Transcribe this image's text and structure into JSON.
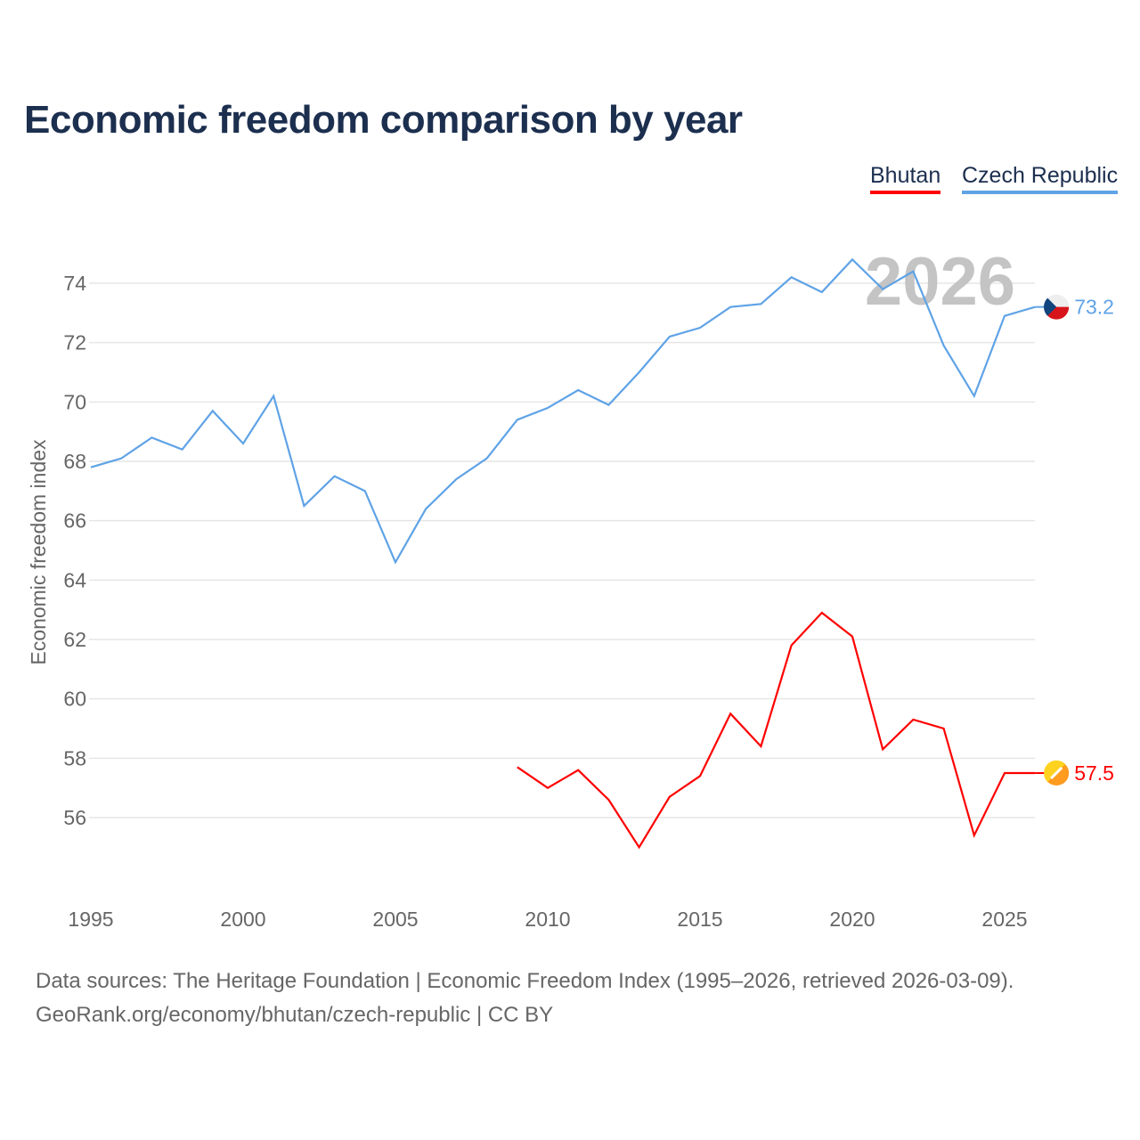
{
  "title": "Economic freedom comparison by year",
  "legend": [
    {
      "label": "Bhutan",
      "color": "#ff0000"
    },
    {
      "label": "Czech Republic",
      "color": "#5fa3e6"
    }
  ],
  "footer": {
    "line1": "Data sources: The Heritage Foundation | Economic Freedom Index (1995–2026, retrieved 2026-03-09).",
    "line2": "GeoRank.org/economy/bhutan/czech-republic | CC BY"
  },
  "chart_data": {
    "type": "line",
    "title": "Economic freedom comparison by year",
    "ylabel": "Economic freedom index",
    "xlabel": "",
    "year_watermark": "2026",
    "xlim": [
      1995,
      2026
    ],
    "ylim": [
      53.5,
      75
    ],
    "x_ticks": [
      "1995",
      "2000",
      "2005",
      "2010",
      "2015",
      "2020",
      "2025"
    ],
    "y_ticks": [
      "56",
      "58",
      "60",
      "62",
      "64",
      "66",
      "68",
      "70",
      "72",
      "74"
    ],
    "grid": true,
    "legend_position": "top-right",
    "series": [
      {
        "name": "Czech Republic",
        "color": "#5fa3e6",
        "end_label": "73.2",
        "x": [
          1995,
          1996,
          1997,
          1998,
          1999,
          2000,
          2001,
          2002,
          2003,
          2004,
          2005,
          2006,
          2007,
          2008,
          2009,
          2010,
          2011,
          2012,
          2013,
          2014,
          2015,
          2016,
          2017,
          2018,
          2019,
          2020,
          2021,
          2022,
          2023,
          2024,
          2025,
          2026
        ],
        "values": [
          67.8,
          68.1,
          68.8,
          68.4,
          69.7,
          68.6,
          70.2,
          66.5,
          67.5,
          67.0,
          64.6,
          66.4,
          67.4,
          68.1,
          69.4,
          69.8,
          70.4,
          69.9,
          71.0,
          72.2,
          72.5,
          73.2,
          73.3,
          74.2,
          73.7,
          74.8,
          73.8,
          74.4,
          71.9,
          70.2,
          72.9,
          73.2
        ]
      },
      {
        "name": "Bhutan",
        "color": "#ff0000",
        "end_label": "57.5",
        "x": [
          2009,
          2010,
          2011,
          2012,
          2013,
          2014,
          2015,
          2016,
          2017,
          2018,
          2019,
          2020,
          2021,
          2022,
          2023,
          2024,
          2025,
          2026
        ],
        "values": [
          57.7,
          57.0,
          57.6,
          56.6,
          55.0,
          56.7,
          57.4,
          59.5,
          58.4,
          61.8,
          62.9,
          62.1,
          58.3,
          59.3,
          59.0,
          55.4,
          57.5,
          57.5
        ]
      }
    ]
  }
}
